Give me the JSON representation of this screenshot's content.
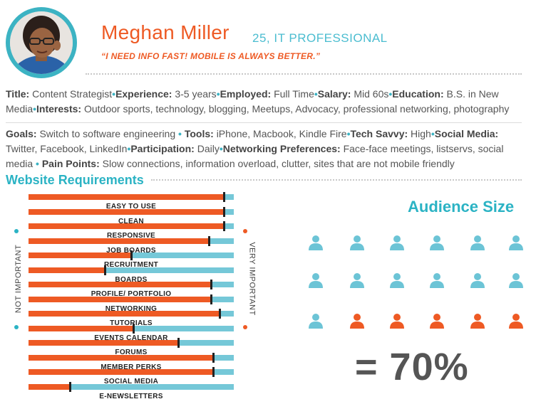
{
  "profile": {
    "name": "Meghan Miller",
    "subtitle": "25, IT PROFESSIONAL",
    "quote": "“I NEED INFO FAST! MOBILE IS ALWAYS BETTER.”"
  },
  "bio": {
    "title_label": "Title:",
    "title": "Content Strategist",
    "experience_label": "Experience:",
    "experience": "3-5 years",
    "employed_label": "Employed:",
    "employed": "Full Time",
    "salary_label": "Salary:",
    "salary": "Mid 60s",
    "education_label": "Education:",
    "education": "B.S. in New Media",
    "interests_label": "Interests:",
    "interests": "Outdoor sports, technology, blogging, Meetups, Advocacy, professional networking, photography"
  },
  "details": {
    "goals_label": "Goals:",
    "goals": "Switch to software engineering",
    "tools_label": "Tools:",
    "tools": "iPhone, Macbook, Kindle Fire",
    "savvy_label": "Tech Savvy:",
    "savvy": "High",
    "social_label": "Social Media:",
    "social": "Twitter, Facebook, LinkedIn",
    "participation_label": "Participation:",
    "participation": "Daily",
    "networking_label": "Networking Preferences:",
    "networking": "Face-face meetings, listservs, social media",
    "pain_label": "Pain Points:",
    "pain": "Slow connections, information overload, clutter, sites that are not mobile friendly"
  },
  "requirements": {
    "title": "Website Requirements",
    "left_label": "NOT IMPORTANT",
    "right_label": "VERY IMPORTANT",
    "items": [
      {
        "label": "EASY TO USE",
        "value": 0.95
      },
      {
        "label": "CLEAN",
        "value": 0.95
      },
      {
        "label": "RESPONSIVE",
        "value": 0.95
      },
      {
        "label": "JOB BOARDS",
        "value": 0.88
      },
      {
        "label": "RECRUITMENT",
        "value": 0.5
      },
      {
        "label": "BOARDS",
        "value": 0.37
      },
      {
        "label": "PROFILE/ PORTFOLIO",
        "value": 0.89
      },
      {
        "label": "NETWORKING",
        "value": 0.89
      },
      {
        "label": "TUTORIALS",
        "value": 0.93
      },
      {
        "label": "EVENTS CALENDAR",
        "value": 0.51
      },
      {
        "label": "FORUMS",
        "value": 0.73
      },
      {
        "label": "MEMBER PERKS",
        "value": 0.9
      },
      {
        "label": "SOCIAL MEDIA",
        "value": 0.9
      },
      {
        "label": "E-NEWSLETTERS",
        "value": 0.2
      }
    ]
  },
  "audience": {
    "title": "Audience Size",
    "percent_text": "= 70%",
    "total_icons": 18,
    "highlighted_icons": 5,
    "base_color": "#6cc4d6",
    "highlight_color": "#ee5a24"
  },
  "colors": {
    "accent_orange": "#ee5a24",
    "accent_teal": "#2bb3c4"
  }
}
